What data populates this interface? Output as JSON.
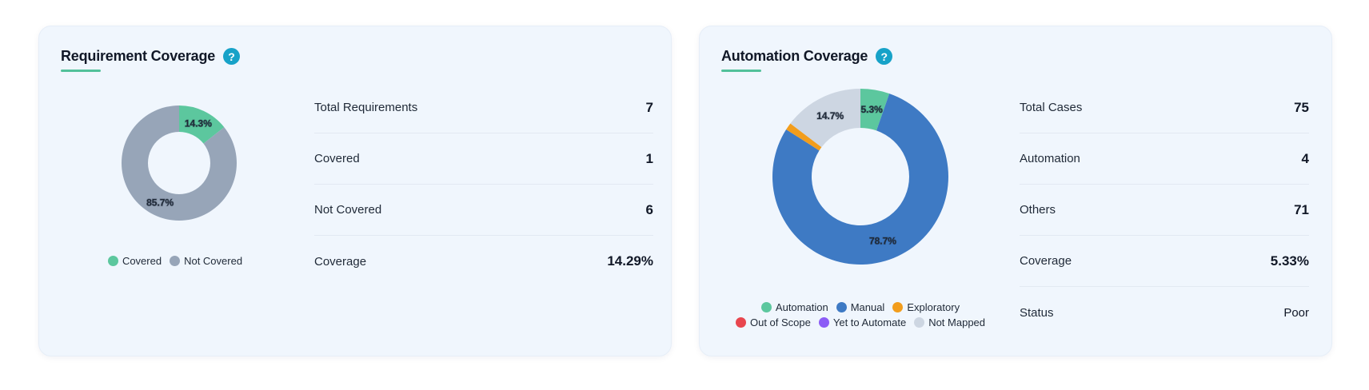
{
  "requirement": {
    "title": "Requirement Coverage",
    "help_glyph": "?",
    "chart_data": {
      "type": "pie",
      "categories": [
        "Covered",
        "Not Covered"
      ],
      "values": [
        1,
        6
      ],
      "labels": [
        "14.3%",
        "85.7%"
      ],
      "colors": [
        "#5cc79e",
        "#97a5b8"
      ]
    },
    "legend": [
      {
        "label": "Covered",
        "color": "#5cc79e"
      },
      {
        "label": "Not Covered",
        "color": "#97a5b8"
      }
    ],
    "stats": [
      {
        "label": "Total Requirements",
        "value": "7"
      },
      {
        "label": "Covered",
        "value": "1"
      },
      {
        "label": "Not Covered",
        "value": "6"
      },
      {
        "label": "Coverage",
        "value": "14.29%"
      }
    ]
  },
  "automation": {
    "title": "Automation Coverage",
    "help_glyph": "?",
    "chart_data": {
      "type": "pie",
      "categories": [
        "Automation",
        "Manual",
        "Exploratory",
        "Out of Scope",
        "Yet to Automate",
        "Not Mapped"
      ],
      "values": [
        4,
        59,
        1,
        0,
        0,
        11
      ],
      "labels": [
        "5.3%",
        "78.7%",
        "",
        "",
        "",
        "14.7%"
      ],
      "colors": [
        "#5cc79e",
        "#3e7ac4",
        "#f29d1c",
        "#e8464e",
        "#8b5cf6",
        "#cdd6e2"
      ]
    },
    "legend": [
      {
        "label": "Automation",
        "color": "#5cc79e"
      },
      {
        "label": "Manual",
        "color": "#3e7ac4"
      },
      {
        "label": "Exploratory",
        "color": "#f29d1c"
      },
      {
        "label": "Out of Scope",
        "color": "#e8464e"
      },
      {
        "label": "Yet to Automate",
        "color": "#8b5cf6"
      },
      {
        "label": "Not Mapped",
        "color": "#cdd6e2"
      }
    ],
    "stats": [
      {
        "label": "Total Cases",
        "value": "75"
      },
      {
        "label": "Automation",
        "value": "4"
      },
      {
        "label": "Others",
        "value": "71"
      },
      {
        "label": "Coverage",
        "value": "5.33%"
      },
      {
        "label": "Status",
        "value": "Poor"
      }
    ]
  }
}
